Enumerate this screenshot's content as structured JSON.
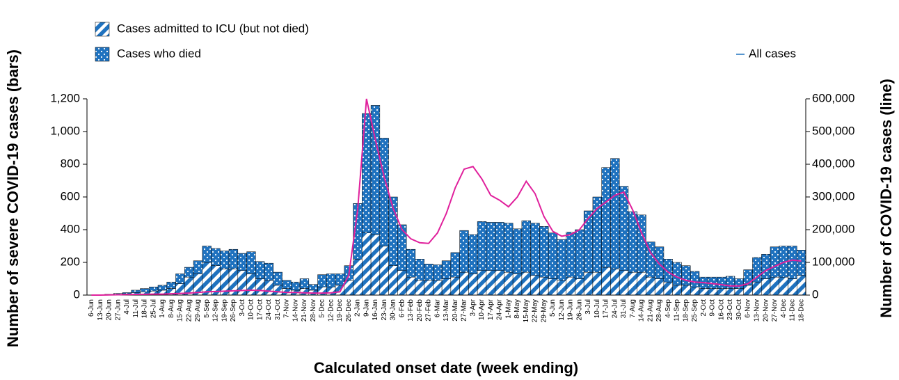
{
  "chart_data": {
    "type": "bar-line",
    "y_title": "Number of severe COVID-19 cases (bars)",
    "y2_title": "Number of COVID-19 cases (line)",
    "x_title": "Calculated onset date (week ending)",
    "categories": [
      "6-Jun",
      "13-Jun",
      "20-Jun",
      "27-Jun",
      "4-Jul",
      "11-Jul",
      "18-Jul",
      "25-Jul",
      "1-Aug",
      "8-Aug",
      "15-Aug",
      "22-Aug",
      "29-Aug",
      "5-Sep",
      "12-Sep",
      "19-Sep",
      "26-Sep",
      "3-Oct",
      "10-Oct",
      "17-Oct",
      "24-Oct",
      "31-Oct",
      "7-Nov",
      "14-Nov",
      "21-Nov",
      "28-Nov",
      "5-Dec",
      "12-Dec",
      "19-Dec",
      "26-Dec",
      "2-Jan",
      "9-Jan",
      "16-Jan",
      "23-Jan",
      "30-Jan",
      "6-Feb",
      "13-Feb",
      "20-Feb",
      "27-Feb",
      "6-Mar",
      "13-Mar",
      "20-Mar",
      "27-Mar",
      "3-Apr",
      "10-Apr",
      "17-Apr",
      "24-Apr",
      "1-May",
      "8-May",
      "15-May",
      "22-May",
      "29-May",
      "5-Jun",
      "12-Jun",
      "19-Jun",
      "26-Jun",
      "3-Jul",
      "10-Jul",
      "17-Jul",
      "24-Jul",
      "31-Jul",
      "7-Aug",
      "14-Aug",
      "21-Aug",
      "28-Aug",
      "4-Sep",
      "11-Sep",
      "18-Sep",
      "25-Sep",
      "2-Oct",
      "9-Oct",
      "16-Oct",
      "23-Oct",
      "30-Oct",
      "6-Nov",
      "13-Nov",
      "20-Nov",
      "27-Nov",
      "4-Dec",
      "11-Dec",
      "18-Dec"
    ],
    "series": [
      {
        "name": "Cases admitted to ICU (but not died)",
        "color": "#1f72bf",
        "pattern": "stripes",
        "values": [
          0,
          1,
          3,
          5,
          8,
          15,
          20,
          25,
          30,
          40,
          70,
          110,
          130,
          200,
          180,
          160,
          160,
          150,
          130,
          100,
          90,
          60,
          40,
          30,
          40,
          30,
          50,
          50,
          60,
          90,
          220,
          380,
          370,
          300,
          180,
          150,
          110,
          90,
          90,
          90,
          100,
          110,
          140,
          130,
          150,
          150,
          150,
          140,
          130,
          140,
          120,
          110,
          100,
          90,
          110,
          100,
          140,
          140,
          170,
          160,
          150,
          140,
          140,
          110,
          100,
          80,
          60,
          60,
          50,
          40,
          40,
          40,
          40,
          40,
          60,
          80,
          100,
          110,
          110,
          100,
          120
        ]
      },
      {
        "name": "Cases who died",
        "color": "#1f72bf",
        "pattern": "dots",
        "values": [
          0,
          1,
          2,
          5,
          7,
          15,
          20,
          25,
          30,
          40,
          60,
          60,
          80,
          100,
          105,
          110,
          120,
          105,
          135,
          105,
          105,
          80,
          50,
          50,
          60,
          35,
          75,
          80,
          70,
          90,
          340,
          730,
          790,
          660,
          420,
          280,
          170,
          130,
          100,
          95,
          110,
          150,
          255,
          240,
          300,
          295,
          295,
          300,
          275,
          315,
          320,
          310,
          280,
          250,
          275,
          300,
          375,
          460,
          610,
          675,
          515,
          370,
          350,
          215,
          195,
          140,
          140,
          120,
          95,
          70,
          70,
          70,
          75,
          60,
          95,
          150,
          150,
          185,
          190,
          200,
          155
        ]
      },
      {
        "name": "All cases",
        "color": "#e0209c",
        "axis": "y2",
        "values": [
          0,
          0,
          500,
          1000,
          1500,
          2000,
          2500,
          3000,
          3000,
          4000,
          5000,
          6000,
          8000,
          10000,
          11000,
          12000,
          13000,
          14000,
          15000,
          14000,
          12000,
          10000,
          8000,
          8000,
          7000,
          6000,
          6000,
          7000,
          10000,
          60000,
          260000,
          600000,
          475000,
          360000,
          265000,
          200000,
          172000,
          160000,
          158000,
          190000,
          250000,
          328000,
          385000,
          393000,
          355000,
          305000,
          290000,
          270000,
          300000,
          348000,
          310000,
          240000,
          195000,
          180000,
          185000,
          200000,
          235000,
          265000,
          285000,
          305000,
          315000,
          260000,
          190000,
          130000,
          95000,
          70000,
          55000,
          45000,
          40000,
          38000,
          35000,
          32000,
          28000,
          28000,
          35000,
          55000,
          75000,
          88000,
          100000,
          107000,
          104000
        ]
      }
    ],
    "ylim": [
      0,
      1200
    ],
    "yticks": [
      0,
      200,
      400,
      600,
      800,
      {
        "value": 1000,
        "label": "1,000"
      },
      {
        "value": 1200,
        "label": "1,200"
      }
    ],
    "y2lim": [
      0,
      600000
    ],
    "y2ticks": [
      0,
      {
        "value": 100000,
        "label": "100,000"
      },
      {
        "value": 200000,
        "label": "200,000"
      },
      {
        "value": 300000,
        "label": "300,000"
      },
      {
        "value": 400000,
        "label": "400,000"
      },
      {
        "value": 500000,
        "label": "500,000"
      },
      {
        "value": 600000,
        "label": "600,000"
      }
    ],
    "grid": false
  }
}
